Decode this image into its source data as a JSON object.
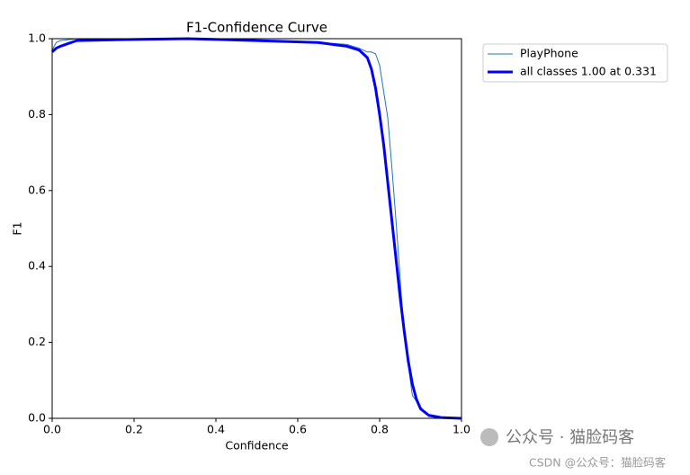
{
  "chart_data": {
    "type": "line",
    "title": "F1-Confidence Curve",
    "x_label": "Confidence",
    "y_label": "F1",
    "x": [
      0,
      0.01,
      0.02,
      0.06,
      0.2,
      0.33,
      0.5,
      0.65,
      0.72,
      0.75,
      0.77,
      0.78,
      0.79,
      0.8,
      0.81,
      0.82,
      0.83,
      0.84,
      0.85,
      0.86,
      0.87,
      0.88,
      0.89,
      0.9,
      0.92,
      0.95,
      1.0
    ],
    "series": [
      {
        "name": "PlayPhone",
        "color": "#1f77b4",
        "width": 1,
        "values": [
          0.97,
          0.99,
          0.995,
          1.0,
          1.0,
          1.0,
          0.995,
          0.99,
          0.985,
          0.975,
          0.965,
          0.965,
          0.96,
          0.93,
          0.86,
          0.79,
          0.66,
          0.52,
          0.37,
          0.22,
          0.14,
          0.06,
          0.045,
          0.03,
          0.005,
          0,
          0
        ]
      },
      {
        "name": "all classes 1.00 at 0.331",
        "color": "#0000ff",
        "width": 3,
        "values": [
          0.965,
          0.975,
          0.98,
          0.995,
          0.998,
          1.0,
          0.995,
          0.99,
          0.98,
          0.97,
          0.95,
          0.92,
          0.87,
          0.8,
          0.72,
          0.62,
          0.52,
          0.42,
          0.32,
          0.23,
          0.15,
          0.09,
          0.05,
          0.025,
          0.008,
          0.002,
          0
        ]
      }
    ],
    "xlim": [
      0,
      1
    ],
    "ylim": [
      0,
      1
    ],
    "xticks": [
      {
        "value": 0,
        "label": "0.0"
      },
      0.2,
      0.4,
      0.6,
      0.8,
      {
        "value": 1,
        "label": "1.0"
      }
    ],
    "yticks": [
      {
        "value": 0,
        "label": "0.0"
      },
      0.2,
      0.4,
      0.6,
      0.8,
      {
        "value": 1,
        "label": "1.0"
      }
    ],
    "grid": false,
    "legend": "upper-right-outside",
    "annotations": [
      "公众号 · 猫脸码客",
      "CSDN @公众号：猫脸码客"
    ]
  }
}
